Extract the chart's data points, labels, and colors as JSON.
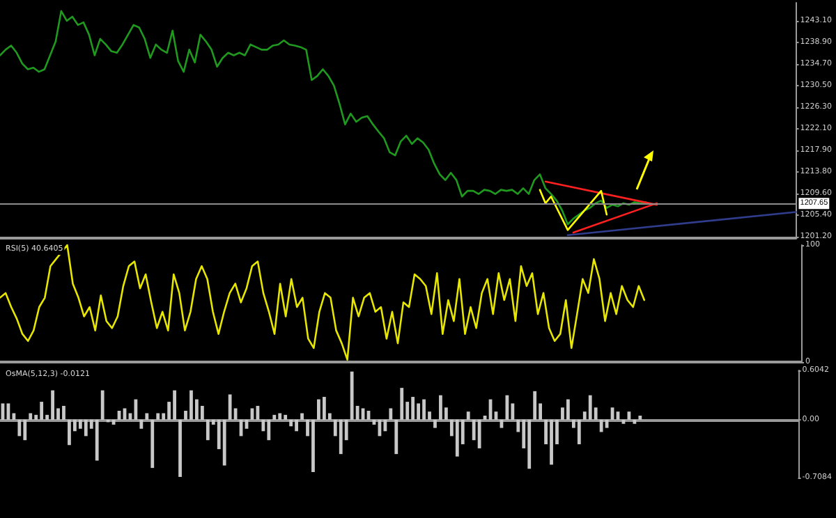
{
  "chart_data": [
    {
      "type": "line",
      "tick_labels": "y",
      "ylim": [
        1200.9,
        1246.6
      ],
      "yticks": [
        {
          "value": 1201.2,
          "label": "1201.20"
        },
        {
          "value": 1205.4,
          "label": "1205.40"
        },
        {
          "value": 1209.6,
          "label": "1209.60"
        },
        {
          "value": 1213.8,
          "label": "1213.80"
        },
        {
          "value": 1217.9,
          "label": "1217.90"
        },
        {
          "value": 1222.1,
          "label": "1222.10"
        },
        {
          "value": 1226.3,
          "label": "1226.30"
        },
        {
          "value": 1230.5,
          "label": "1230.50"
        },
        {
          "value": 1234.7,
          "label": "1234.70"
        },
        {
          "value": 1238.9,
          "label": "1238.90"
        },
        {
          "value": 1243.1,
          "label": "1243.10"
        }
      ],
      "ref_lines": [
        {
          "axis": "y",
          "value": 1207.65,
          "label": "1207.65",
          "color": "#8c8c8c"
        }
      ],
      "categories": [
        null,
        null,
        null,
        null,
        null,
        null,
        null,
        null,
        null,
        null,
        null,
        null,
        null,
        null,
        null,
        null,
        null,
        null,
        null,
        null,
        null,
        null,
        null,
        null,
        null,
        null,
        null,
        null,
        null,
        null,
        null,
        null,
        null,
        null,
        null,
        null,
        null,
        null,
        null,
        null,
        null,
        null,
        null,
        null,
        null,
        null,
        null,
        null,
        null,
        null,
        null,
        null,
        null,
        null,
        null,
        null,
        null,
        null,
        null,
        null,
        null,
        null,
        null,
        null,
        null,
        null,
        null,
        null,
        null,
        null,
        null,
        null,
        null,
        null,
        null,
        null,
        null,
        null,
        null,
        null,
        null,
        null,
        null,
        null,
        null,
        null,
        null,
        null,
        null,
        null,
        null,
        null,
        null,
        null,
        null,
        null,
        null,
        null,
        null,
        null,
        null,
        null,
        null,
        null,
        null,
        null,
        null,
        null,
        null,
        null,
        null,
        null,
        null,
        null,
        null,
        null,
        null,
        null,
        null,
        null,
        null,
        null,
        null,
        null,
        null,
        null,
        null,
        null,
        null,
        null,
        null,
        null,
        null,
        null,
        null,
        null,
        null,
        null,
        null,
        null,
        null,
        null,
        null,
        null
      ],
      "series": [
        {
          "color": "#1f9a1f",
          "values": [
            1236.4,
            1237.5,
            1238.3,
            1236.9,
            1234.8,
            1233.7,
            1234.0,
            1233.2,
            1233.7,
            1236.4,
            1239.1,
            1245.0,
            1243.1,
            1243.9,
            1242.3,
            1242.8,
            1240.4,
            1236.4,
            1239.6,
            1238.5,
            1237.2,
            1236.9,
            1238.5,
            1240.4,
            1242.3,
            1241.8,
            1239.6,
            1235.9,
            1238.5,
            1237.5,
            1236.9,
            1241.2,
            1235.3,
            1233.2,
            1237.5,
            1235.0,
            1240.4,
            1239.1,
            1237.5,
            1234.2,
            1235.9,
            1236.9,
            1236.4,
            1236.9,
            1236.4,
            1238.5,
            1238.0,
            1237.5,
            1237.5,
            1238.3,
            1238.5,
            1239.3,
            1238.5,
            1238.3,
            1238.0,
            1237.5,
            1231.6,
            1232.4,
            1233.7,
            1232.4,
            1230.5,
            1227.0,
            1223.0,
            1225.1,
            1223.5,
            1224.3,
            1224.6,
            1223.0,
            1221.6,
            1220.3,
            1217.6,
            1217.0,
            1219.7,
            1220.8,
            1219.2,
            1220.3,
            1219.5,
            1218.1,
            1215.4,
            1213.3,
            1212.2,
            1213.6,
            1212.2,
            1209.0,
            1210.1,
            1210.1,
            1209.5,
            1210.3,
            1210.1,
            1209.5,
            1210.3,
            1210.1,
            1210.3,
            1209.5,
            1210.6,
            1209.5,
            1212.2,
            1213.3,
            1210.6,
            1209.5,
            1208.2,
            1206.3,
            1203.6,
            1204.7,
            1205.5,
            1206.3,
            1206.8,
            1207.7,
            1208.2,
            1206.8,
            1207.4,
            1207.1,
            1207.7,
            1207.4,
            1207.9,
            1207.7,
            1207.9,
            null,
            null,
            null,
            null,
            null,
            null,
            null,
            null,
            null,
            null,
            null,
            null,
            null,
            null,
            null,
            null,
            null,
            null,
            null,
            null,
            null,
            null,
            null,
            null,
            null,
            null,
            null
          ]
        },
        {
          "color": "#ff2020",
          "values": [
            null,
            null,
            null,
            null,
            null,
            null,
            null,
            null,
            null,
            null,
            null,
            null,
            null,
            null,
            null,
            null,
            null,
            null,
            null,
            null,
            null,
            null,
            null,
            null,
            null,
            null,
            null,
            null,
            null,
            null,
            null,
            null,
            null,
            null,
            null,
            null,
            null,
            null,
            null,
            null,
            null,
            null,
            null,
            null,
            null,
            null,
            null,
            null,
            null,
            null,
            null,
            null,
            null,
            null,
            null,
            null,
            null,
            null,
            null,
            null,
            null,
            null,
            null,
            null,
            null,
            null,
            null,
            null,
            null,
            null,
            null,
            null,
            null,
            null,
            null,
            null,
            null,
            null,
            null,
            null,
            null,
            null,
            null,
            null,
            null,
            null,
            null,
            null,
            null,
            null,
            null,
            null,
            null,
            null,
            null,
            null,
            null,
            null,
            1211.9,
            null,
            null,
            null,
            null,
            null,
            null,
            null,
            null,
            null,
            null,
            null,
            null,
            null,
            null,
            null,
            null,
            null,
            null,
            null,
            1207.4,
            null,
            null,
            null,
            null,
            null,
            null,
            null,
            null,
            null,
            null,
            null,
            null,
            null,
            null,
            null,
            null,
            null,
            null,
            null,
            null,
            null,
            null,
            null,
            null,
            null
          ]
        },
        {
          "color": "#ff2020",
          "values": [
            null,
            null,
            null,
            null,
            null,
            null,
            null,
            null,
            null,
            null,
            null,
            null,
            null,
            null,
            null,
            null,
            null,
            null,
            null,
            null,
            null,
            null,
            null,
            null,
            null,
            null,
            null,
            null,
            null,
            null,
            null,
            null,
            null,
            null,
            null,
            null,
            null,
            null,
            null,
            null,
            null,
            null,
            null,
            null,
            null,
            null,
            null,
            null,
            null,
            null,
            null,
            null,
            null,
            null,
            null,
            null,
            null,
            null,
            null,
            null,
            null,
            null,
            null,
            null,
            null,
            null,
            null,
            null,
            null,
            null,
            null,
            null,
            null,
            null,
            null,
            null,
            null,
            null,
            null,
            null,
            null,
            null,
            null,
            null,
            null,
            null,
            null,
            null,
            null,
            null,
            null,
            null,
            null,
            null,
            null,
            null,
            null,
            null,
            null,
            null,
            null,
            null,
            null,
            1202.0,
            null,
            null,
            null,
            null,
            null,
            null,
            null,
            null,
            null,
            null,
            null,
            null,
            null,
            null,
            1207.7,
            null,
            null,
            null,
            null,
            null,
            null,
            null,
            null,
            null,
            null,
            null,
            null,
            null,
            null,
            null,
            null,
            null,
            null,
            null,
            null,
            null,
            null,
            null,
            null,
            null
          ]
        },
        {
          "color": "#ffff00",
          "values": [
            null,
            null,
            null,
            null,
            null,
            null,
            null,
            null,
            null,
            null,
            null,
            null,
            null,
            null,
            null,
            null,
            null,
            null,
            null,
            null,
            null,
            null,
            null,
            null,
            null,
            null,
            null,
            null,
            null,
            null,
            null,
            null,
            null,
            null,
            null,
            null,
            null,
            null,
            null,
            null,
            null,
            null,
            null,
            null,
            null,
            null,
            null,
            null,
            null,
            null,
            null,
            null,
            null,
            null,
            null,
            null,
            null,
            null,
            null,
            null,
            null,
            null,
            null,
            null,
            null,
            null,
            null,
            null,
            null,
            null,
            null,
            null,
            null,
            null,
            null,
            null,
            null,
            null,
            null,
            null,
            null,
            null,
            null,
            null,
            null,
            null,
            null,
            null,
            null,
            null,
            null,
            null,
            null,
            null,
            null,
            null,
            null,
            1210.3,
            1207.7,
            1209.0,
            null,
            null,
            1202.5,
            null,
            null,
            null,
            null,
            null,
            1210.1,
            1205.5,
            null,
            null,
            null,
            null,
            null,
            null,
            null,
            null,
            null,
            null,
            null,
            null,
            null,
            null,
            null,
            null,
            null,
            null,
            null,
            null,
            null,
            null,
            null,
            null,
            null,
            null,
            null,
            null,
            null,
            null,
            null,
            null,
            null,
            null
          ]
        },
        {
          "color": "#303c8c",
          "values": [
            null,
            null,
            null,
            null,
            null,
            null,
            null,
            null,
            null,
            null,
            null,
            null,
            null,
            null,
            null,
            null,
            null,
            null,
            null,
            null,
            null,
            null,
            null,
            null,
            null,
            null,
            null,
            null,
            null,
            null,
            null,
            null,
            null,
            null,
            null,
            null,
            null,
            null,
            null,
            null,
            null,
            null,
            null,
            null,
            null,
            null,
            null,
            null,
            null,
            null,
            null,
            null,
            null,
            null,
            null,
            null,
            null,
            null,
            null,
            null,
            null,
            null,
            null,
            null,
            null,
            null,
            null,
            null,
            null,
            null,
            null,
            null,
            null,
            null,
            null,
            null,
            null,
            null,
            null,
            null,
            null,
            null,
            null,
            null,
            null,
            null,
            null,
            null,
            null,
            null,
            null,
            null,
            null,
            null,
            null,
            null,
            null,
            null,
            null,
            null,
            null,
            null,
            1201.5,
            null,
            null,
            null,
            null,
            null,
            null,
            null,
            null,
            null,
            null,
            null,
            null,
            null,
            null,
            null,
            null,
            null,
            null,
            null,
            null,
            null,
            null,
            null,
            null,
            null,
            null,
            null,
            null,
            null,
            null,
            null,
            null,
            null,
            null,
            null,
            null,
            null,
            null,
            null,
            null,
            1206.0
          ]
        }
      ]
    },
    {
      "type": "line",
      "title": "RSI(5) 40.6405",
      "tick_labels": "y",
      "ylim": [
        0,
        100
      ],
      "yticks": [
        0,
        100
      ],
      "categories": [
        null,
        null,
        null,
        null,
        null,
        null,
        null,
        null,
        null,
        null,
        null,
        null,
        null,
        null,
        null,
        null,
        null,
        null,
        null,
        null,
        null,
        null,
        null,
        null,
        null,
        null,
        null,
        null,
        null,
        null,
        null,
        null,
        null,
        null,
        null,
        null,
        null,
        null,
        null,
        null,
        null,
        null,
        null,
        null,
        null,
        null,
        null,
        null,
        null,
        null,
        null,
        null,
        null,
        null,
        null,
        null,
        null,
        null,
        null,
        null,
        null,
        null,
        null,
        null,
        null,
        null,
        null,
        null,
        null,
        null,
        null,
        null,
        null,
        null,
        null,
        null,
        null,
        null,
        null,
        null,
        null,
        null,
        null,
        null,
        null,
        null,
        null,
        null,
        null,
        null,
        null,
        null,
        null,
        null,
        null,
        null,
        null,
        null,
        null,
        null,
        null,
        null,
        null,
        null,
        null,
        null,
        null,
        null,
        null,
        null,
        null,
        null,
        null,
        null,
        null,
        null,
        null,
        null,
        null,
        null,
        null,
        null,
        null,
        null,
        null,
        null,
        null,
        null,
        null,
        null,
        null,
        null,
        null,
        null,
        null,
        null,
        null,
        null,
        null,
        null,
        null,
        null,
        null,
        null
      ],
      "series": [
        {
          "color": "#e6e600",
          "values": [
            55,
            59,
            47,
            37,
            24,
            18,
            27,
            47,
            55,
            82,
            88,
            94,
            100,
            67,
            55,
            39,
            47,
            27,
            57,
            35,
            29,
            39,
            65,
            82,
            86,
            63,
            75,
            51,
            29,
            43,
            27,
            75,
            59,
            27,
            43,
            71,
            82,
            71,
            43,
            24,
            43,
            59,
            67,
            51,
            63,
            82,
            86,
            59,
            43,
            24,
            67,
            39,
            71,
            47,
            55,
            20,
            12,
            43,
            59,
            55,
            27,
            16,
            2,
            55,
            39,
            55,
            59,
            43,
            47,
            20,
            43,
            16,
            51,
            47,
            75,
            71,
            65,
            41,
            76,
            24,
            53,
            35,
            71,
            24,
            47,
            29,
            59,
            71,
            41,
            76,
            53,
            71,
            35,
            82,
            65,
            76,
            41,
            59,
            29,
            18,
            24,
            53,
            12,
            41,
            71,
            59,
            88,
            71,
            35,
            59,
            41,
            65,
            53,
            47,
            65,
            53,
            null,
            null,
            null,
            null,
            null,
            null,
            null,
            null,
            null,
            null,
            null,
            null,
            null,
            null,
            null,
            null,
            null,
            null,
            null,
            null,
            null,
            null,
            null,
            null,
            null,
            null,
            null,
            null
          ]
        }
      ]
    },
    {
      "type": "bar",
      "title": "OsMA(5,12,3) -0.0121",
      "tick_labels": "y",
      "ylim": [
        -0.7084,
        0.6042
      ],
      "yticks": [
        -0.7084,
        {
          "value": 0,
          "label": "0.00"
        },
        0.6042
      ],
      "categories": [
        null,
        null,
        null,
        null,
        null,
        null,
        null,
        null,
        null,
        null,
        null,
        null,
        null,
        null,
        null,
        null,
        null,
        null,
        null,
        null,
        null,
        null,
        null,
        null,
        null,
        null,
        null,
        null,
        null,
        null,
        null,
        null,
        null,
        null,
        null,
        null,
        null,
        null,
        null,
        null,
        null,
        null,
        null,
        null,
        null,
        null,
        null,
        null,
        null,
        null,
        null,
        null,
        null,
        null,
        null,
        null,
        null,
        null,
        null,
        null,
        null,
        null,
        null,
        null,
        null,
        null,
        null,
        null,
        null,
        null,
        null,
        null,
        null,
        null,
        null,
        null,
        null,
        null,
        null,
        null,
        null,
        null,
        null,
        null,
        null,
        null,
        null,
        null,
        null,
        null,
        null,
        null,
        null,
        null,
        null,
        null,
        null,
        null,
        null,
        null,
        null,
        null,
        null,
        null,
        null,
        null,
        null,
        null,
        null,
        null,
        null,
        null,
        null,
        null,
        null,
        null,
        null,
        null,
        null,
        null,
        null,
        null,
        null,
        null,
        null,
        null,
        null,
        null,
        null,
        null,
        null,
        null,
        null,
        null,
        null,
        null,
        null,
        null,
        null,
        null,
        null,
        null,
        null,
        null
      ],
      "series": [
        {
          "color": "#c8c8c8",
          "values": [
            0.2,
            0.2,
            0.08,
            -0.2,
            -0.25,
            0.08,
            0.06,
            0.22,
            0.06,
            0.36,
            0.14,
            0.17,
            -0.31,
            -0.14,
            -0.11,
            -0.2,
            -0.11,
            -0.5,
            0.36,
            -0.03,
            -0.06,
            0.11,
            0.14,
            0.08,
            0.25,
            -0.11,
            0.08,
            -0.59,
            0.08,
            0.08,
            0.22,
            0.36,
            -0.7,
            0.11,
            0.36,
            0.25,
            0.17,
            -0.25,
            -0.06,
            -0.36,
            -0.56,
            0.31,
            0.14,
            -0.2,
            -0.11,
            0.14,
            0.17,
            -0.14,
            -0.25,
            0.06,
            0.08,
            0.06,
            -0.08,
            -0.14,
            0.08,
            -0.2,
            -0.64,
            0.25,
            0.28,
            0.08,
            -0.2,
            -0.42,
            -0.25,
            0.59,
            0.17,
            0.14,
            0.11,
            -0.06,
            -0.2,
            -0.14,
            0.14,
            -0.42,
            0.39,
            0.22,
            0.28,
            0.2,
            0.25,
            0.1,
            -0.1,
            0.3,
            0.15,
            -0.2,
            -0.45,
            -0.3,
            0.1,
            -0.25,
            -0.35,
            0.05,
            0.25,
            0.1,
            -0.1,
            0.3,
            0.2,
            -0.15,
            -0.35,
            -0.6,
            0.35,
            0.2,
            -0.3,
            -0.55,
            -0.3,
            0.15,
            0.25,
            -0.1,
            -0.3,
            0.1,
            0.3,
            0.15,
            -0.15,
            -0.1,
            0.15,
            0.1,
            -0.05,
            0.1,
            -0.05,
            0.05,
            null,
            null,
            null,
            null,
            null,
            null,
            null,
            null,
            null,
            null,
            null,
            null,
            null,
            null,
            null,
            null,
            null,
            null,
            null,
            null,
            null,
            null,
            null,
            null,
            null,
            null,
            null,
            null
          ]
        }
      ]
    }
  ]
}
